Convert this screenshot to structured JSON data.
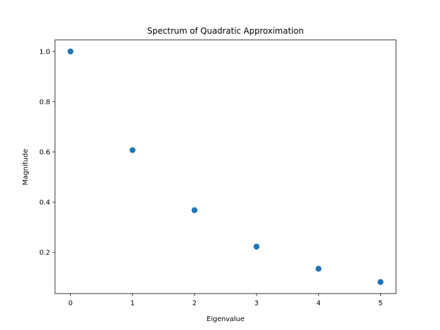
{
  "chart_data": {
    "type": "scatter",
    "title": "Spectrum of Quadratic Approximation",
    "xlabel": "Eigenvalue",
    "ylabel": "Magnitude",
    "x": [
      0,
      1,
      2,
      3,
      4,
      5
    ],
    "y": [
      1.0,
      0.607,
      0.368,
      0.223,
      0.135,
      0.082
    ],
    "xlim": [
      -0.25,
      5.25
    ],
    "ylim": [
      0.036,
      1.046
    ],
    "xticks": [
      0,
      1,
      2,
      3,
      4,
      5
    ],
    "yticks": [
      0.2,
      0.4,
      0.6,
      0.8,
      1.0
    ],
    "ytick_labels": [
      "0.2",
      "0.4",
      "0.6",
      "0.8",
      "1.0"
    ],
    "marker_color": "#1f77b4",
    "grid": false
  }
}
